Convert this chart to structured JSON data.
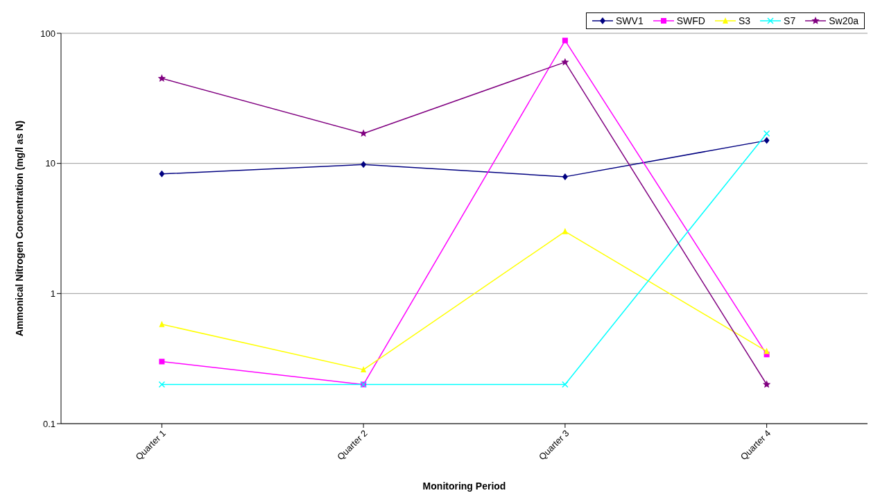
{
  "chart_data": {
    "type": "line",
    "xlabel": "Monitoring Period",
    "ylabel": "Ammonical Nitrogen Concentration (mg/l as N)",
    "categories": [
      "Quarter 1",
      "Quarter 2",
      "Quarter 3",
      "Quarter 4"
    ],
    "series": [
      {
        "name": "SWV1",
        "color": "#000080",
        "marker": "diamond",
        "values": [
          8.3,
          9.8,
          7.9,
          15
        ]
      },
      {
        "name": "SWFD",
        "color": "#ff00ff",
        "marker": "square",
        "values": [
          0.3,
          0.2,
          88,
          0.34
        ]
      },
      {
        "name": "S3",
        "color": "#ffff00",
        "marker": "triangle",
        "values": [
          0.58,
          0.26,
          3,
          0.36
        ]
      },
      {
        "name": "S7",
        "color": "#00ffff",
        "marker": "cross",
        "values": [
          0.2,
          0.2,
          0.2,
          17
        ]
      },
      {
        "name": "Sw20a",
        "color": "#800080",
        "marker": "star",
        "values": [
          45,
          17,
          60,
          0.2
        ]
      }
    ],
    "log": "y",
    "ylim": [
      0.1,
      100
    ],
    "yticks": [
      0.1,
      1,
      10,
      100
    ],
    "grid": "y",
    "legend": "top right",
    "line_style": "solid"
  }
}
